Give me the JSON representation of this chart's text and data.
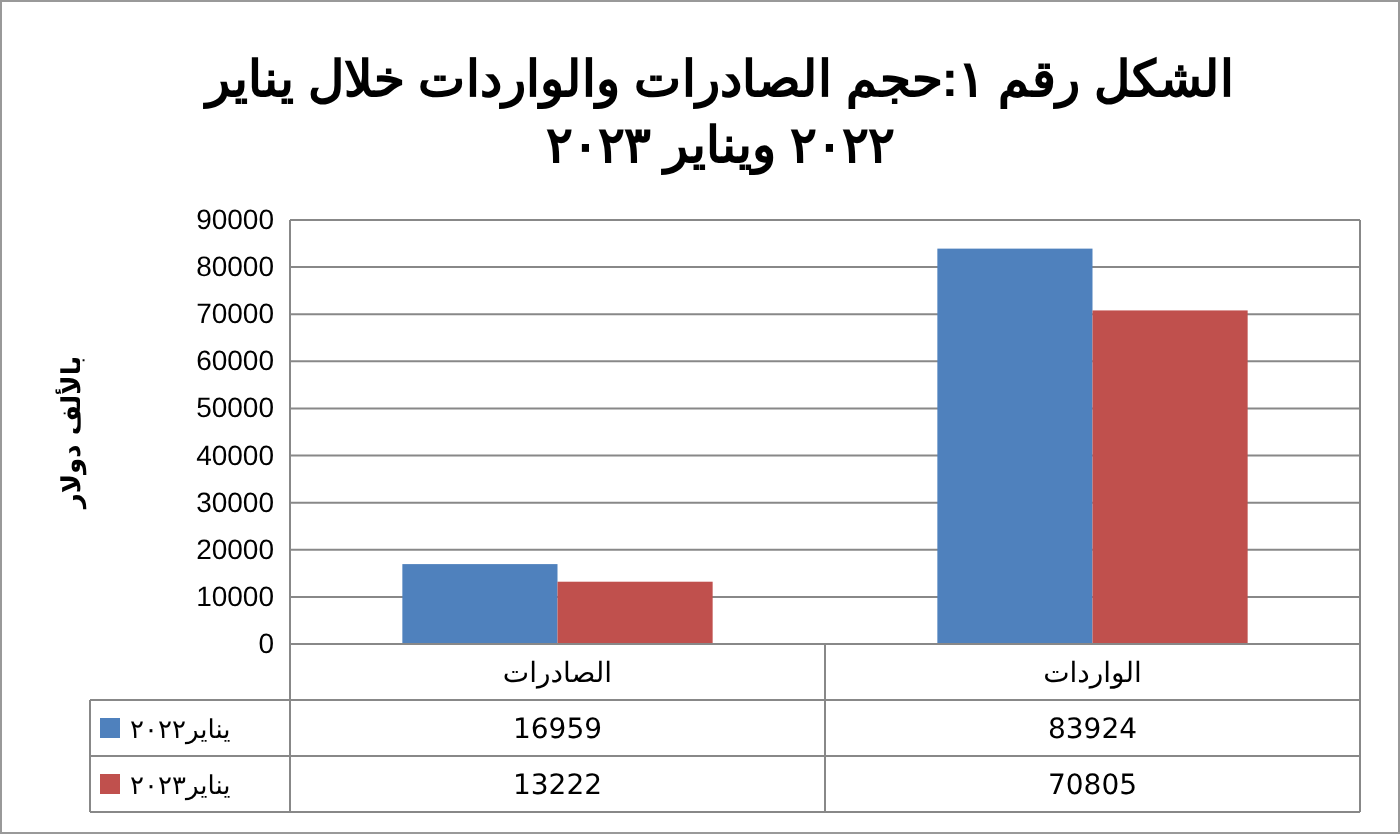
{
  "chart_data": {
    "type": "bar",
    "title": "الشكل رقم ١:حجم الصادرات والواردات خلال يناير ٢٠٢٢ ويناير ٢٠٢٣",
    "ylabel": "بالألف دولار",
    "categories": [
      "الصادرات",
      "الواردات"
    ],
    "series": [
      {
        "name": "يناير٢٠٢٢",
        "color": "#4f81bd",
        "values": [
          16959,
          83924
        ]
      },
      {
        "name": "يناير٢٠٢٣",
        "color": "#c0504d",
        "values": [
          13222,
          70805
        ]
      }
    ],
    "ylim": [
      0,
      90000
    ],
    "yticks": [
      0,
      10000,
      20000,
      30000,
      40000,
      50000,
      60000,
      70000,
      80000,
      90000
    ],
    "grid": "y",
    "legend": "bottom",
    "data_labels": true
  }
}
